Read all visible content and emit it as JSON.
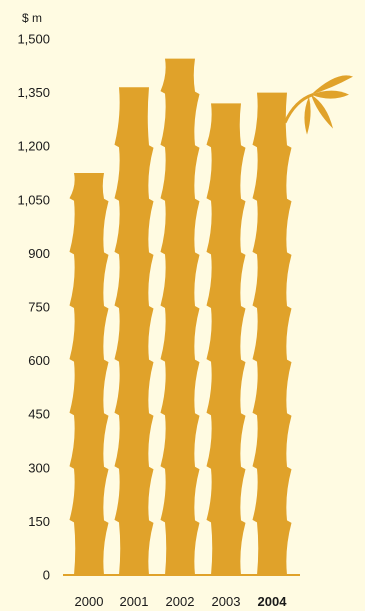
{
  "chart_data": {
    "type": "bar",
    "unit_label": "$ m",
    "categories": [
      "2000",
      "2001",
      "2002",
      "2003",
      "2004"
    ],
    "highlight_category": "2004",
    "values": [
      1125,
      1365,
      1445,
      1320,
      1350
    ],
    "ylim": [
      0,
      1500
    ],
    "yticks": [
      0,
      150,
      300,
      450,
      600,
      750,
      900,
      1050,
      1200,
      1350,
      1500
    ],
    "ytick_labels": [
      "0",
      "150",
      "300",
      "450",
      "600",
      "750",
      "900",
      "1,050",
      "1,200",
      "1,350",
      "1,500"
    ],
    "bar_color": "#e0a22a",
    "axis_color": "#e0a22a",
    "text_color": "#1a1a1a",
    "background": "#fffbe2",
    "decoration": "bamboo-leaf-icon"
  }
}
